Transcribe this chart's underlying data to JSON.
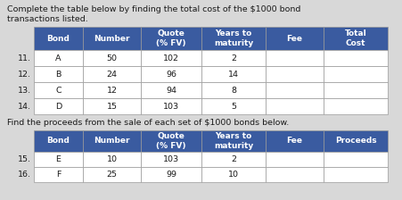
{
  "title1_line1": "Complete the table below by finding the total cost of the $1000 bond",
  "title1_line2": "transactions listed.",
  "title2": "Find the proceeds from the sale of each set of $1000 bonds below.",
  "table1_headers": [
    "Bond",
    "Number",
    "Quote\n(% FV)",
    "Years to\nmaturity",
    "Fee",
    "Total\nCost"
  ],
  "table1_row_labels": [
    "11.",
    "12.",
    "13.",
    "14."
  ],
  "table1_col1": [
    "A",
    "B",
    "C",
    "D"
  ],
  "table1_col2": [
    "50",
    "24",
    "12",
    "15"
  ],
  "table1_col3": [
    "102",
    "96",
    "94",
    "103"
  ],
  "table1_col4": [
    "2",
    "14",
    "8",
    "5"
  ],
  "table1_col5": [
    "",
    "",
    "",
    ""
  ],
  "table1_col6": [
    "",
    "",
    "",
    ""
  ],
  "table2_headers": [
    "Bond",
    "Number",
    "Quote\n(% FV)",
    "Years to\nmaturity",
    "Fee",
    "Proceeds"
  ],
  "table2_row_labels": [
    "15.",
    "16."
  ],
  "table2_col1": [
    "E",
    "F"
  ],
  "table2_col2": [
    "10",
    "25"
  ],
  "table2_col3": [
    "103",
    "99"
  ],
  "table2_col4": [
    "2",
    "10"
  ],
  "table2_col5": [
    "",
    ""
  ],
  "table2_col6": [
    "",
    ""
  ],
  "header_bg": "#3A5BA0",
  "header_text": "#FFFFFF",
  "cell_bg": "#FFFFFF",
  "border_color": "#999999",
  "text_color": "#1a1a1a",
  "bg_color": "#D8D8D8",
  "title_fontsize": 6.8,
  "header_fontsize": 6.5,
  "cell_fontsize": 6.8,
  "label_fontsize": 6.8
}
